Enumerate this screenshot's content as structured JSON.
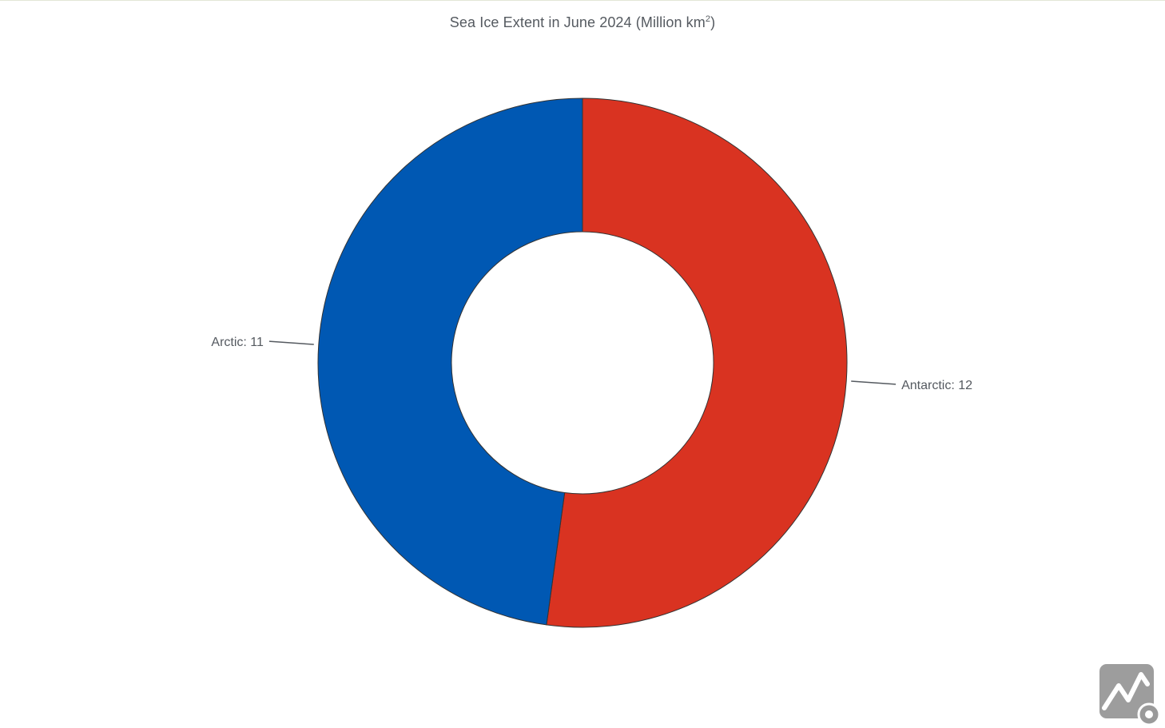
{
  "chart_data": {
    "type": "pie",
    "variant": "donut",
    "title": "Sea Ice Extent in June 2024 (Million km",
    "title_superscript": "2",
    "title_suffix": ")",
    "slices": [
      {
        "label": "Antarctic",
        "value": 12,
        "display": "Antarctic: 12",
        "color": "#d93321"
      },
      {
        "label": "Arctic",
        "value": 11,
        "display": "Arctic: 11",
        "color": "#0058b3"
      }
    ],
    "start_angle_deg": 0,
    "direction": "clockwise",
    "legend": "none"
  },
  "watermark": {
    "icon": "chart-app-logo-icon"
  }
}
